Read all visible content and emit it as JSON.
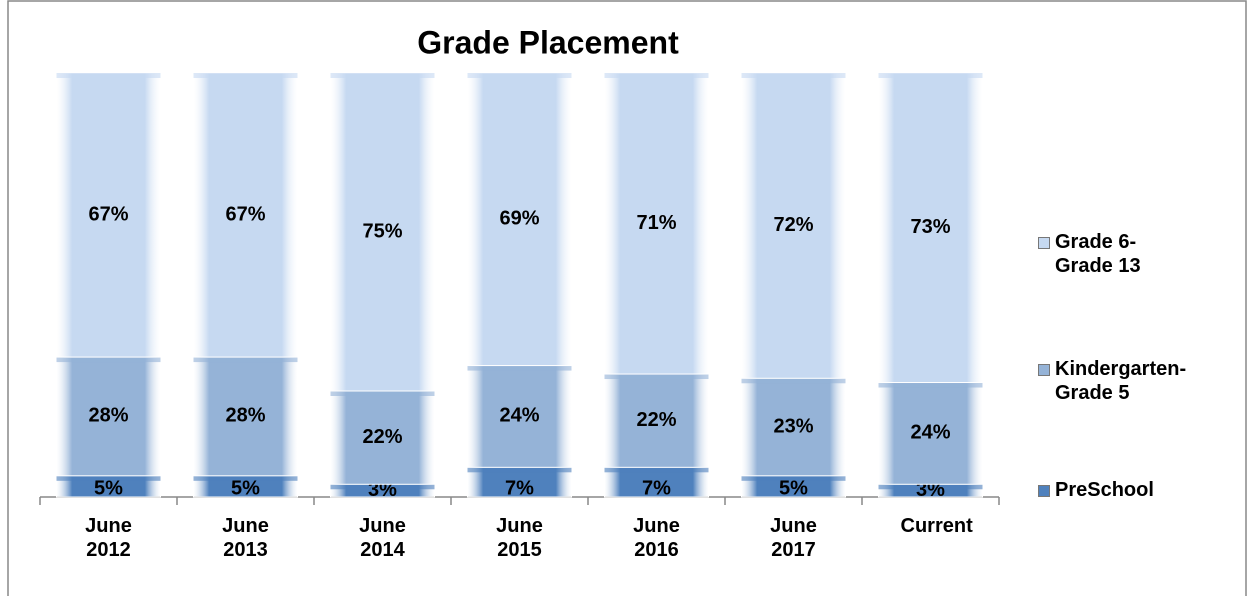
{
  "chart_data": {
    "type": "stacked_bar",
    "title": "Grade Placement",
    "categories": [
      "June 2012",
      "June 2013",
      "June 2014",
      "June 2015",
      "June 2016",
      "June 2017",
      "Current"
    ],
    "series": [
      {
        "name": "PreSchool",
        "color": "#4f81bd",
        "values": [
          5,
          5,
          3,
          7,
          7,
          5,
          3
        ],
        "value_labels": [
          "5%",
          "5%",
          "3%",
          "7%",
          "7%",
          "5%",
          "3%"
        ]
      },
      {
        "name": "Kindergarten-Grade 5",
        "color": "#95b3d7",
        "values": [
          28,
          28,
          22,
          24,
          22,
          23,
          24
        ],
        "value_labels": [
          "28%",
          "28%",
          "22%",
          "24%",
          "22%",
          "23%",
          "24%"
        ]
      },
      {
        "name": "Grade 6-Grade 13",
        "color": "#c6d9f1",
        "values": [
          67,
          67,
          75,
          69,
          71,
          72,
          73
        ],
        "value_labels": [
          "67%",
          "67%",
          "75%",
          "69%",
          "71%",
          "72%",
          "73%"
        ]
      }
    ],
    "legend": "right"
  }
}
